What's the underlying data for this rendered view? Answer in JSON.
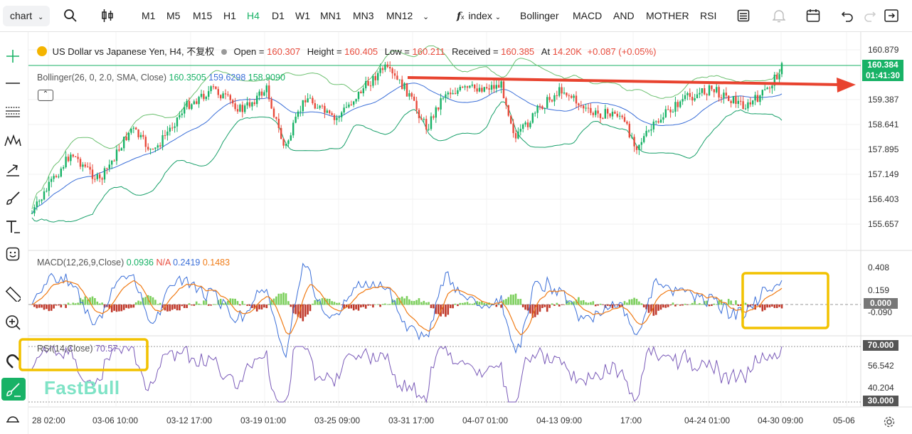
{
  "toolbar": {
    "chart_select": "chart",
    "timeframes": [
      "M1",
      "M5",
      "M15",
      "H1",
      "H4",
      "D1",
      "W1",
      "MN1",
      "MN3",
      "MN12"
    ],
    "active_timeframe": "H4",
    "index_label": "index",
    "indicators": [
      "Bollinger",
      "MACD",
      "AND",
      "MOTHER",
      "RSI"
    ]
  },
  "info": {
    "symbol": "US Dollar vs Japanese Yen, H4, 不复权",
    "open_label": "Open =",
    "open": "160.307",
    "high_label": "Height =",
    "high": "160.405",
    "low_label": "Low =",
    "low": "160.211",
    "close_label": "Received =",
    "close": "160.385",
    "at_label": "At",
    "at": "14.20K",
    "change": "+0.087 (+0.05%)"
  },
  "bollinger": {
    "label": "Bollinger(26, 0, 2.0, SMA, Close)",
    "upper": "160.3505",
    "mid": "159.6298",
    "lower": "158.9090"
  },
  "macd": {
    "label": "MACD(12,26,9,Close)",
    "v1": "0.0936",
    "v2": "N/A",
    "v3": "0.2419",
    "v4": "0.1483"
  },
  "rsi": {
    "label": "RSI(14,Close)",
    "value": "70.57"
  },
  "price_axis": [
    "160.879",
    "159.387",
    "158.641",
    "157.895",
    "157.149",
    "156.403",
    "155.657"
  ],
  "current_price": "160.384",
  "countdown": "01:41:30",
  "macd_axis": [
    "0.408",
    "0.159",
    "-0.090"
  ],
  "macd_zero": "0.000",
  "rsi_axis": [
    "56.542",
    "40.204"
  ],
  "rsi_upper": "70.000",
  "rsi_lower": "30.000",
  "time_axis": [
    "28 02:00",
    "03-06 10:00",
    "03-12 17:00",
    "03-19 01:00",
    "03-25 09:00",
    "03-31 17:00",
    "04-07 01:00",
    "04-13 09:00",
    "17:00",
    "04-24 01:00",
    "04-30 09:00",
    "05-06"
  ],
  "watermark": "FastBull",
  "colors": {
    "up": "#18b266",
    "down": "#e84b3c",
    "annotation_arrow": "#e8432f",
    "highlight_box": "#f2c200",
    "accent": "#18b266"
  },
  "icons": [
    "search-icon",
    "candle-type-icon",
    "chevron-down-icon",
    "fx-icon",
    "layout-icon",
    "alert-icon",
    "calendar-icon",
    "undo-icon",
    "redo-icon",
    "fullscreen-icon",
    "crosshair-icon",
    "trendline-icon",
    "fib-icon",
    "pattern-icon",
    "arrow-tool-icon",
    "brush-icon",
    "text-icon",
    "emoji-icon",
    "ruler-icon",
    "zoom-icon",
    "magnet-icon",
    "lock-icon",
    "settings-icon"
  ]
}
